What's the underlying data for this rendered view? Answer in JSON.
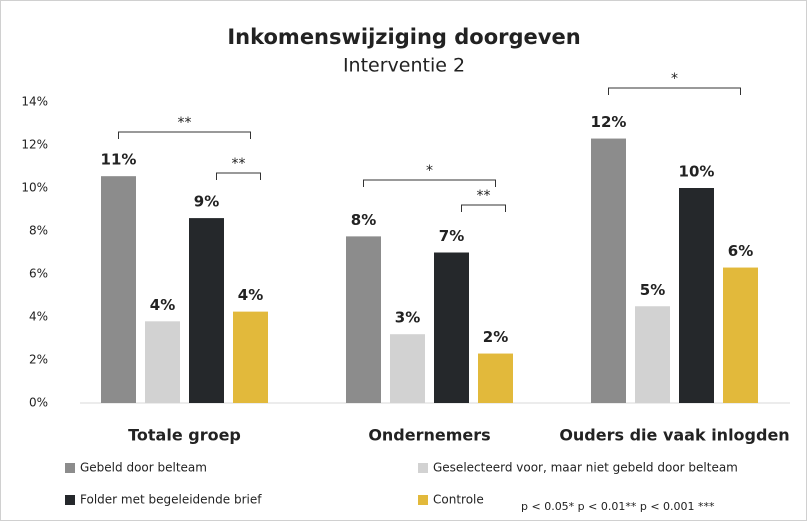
{
  "chart_data": {
    "type": "bar",
    "title": "Inkomenswijziging doorgeven",
    "subtitle": "Interventie 2",
    "categories": [
      "Totale groep",
      "Ondernemers",
      "Ouders die vaak inlogden"
    ],
    "series": [
      {
        "name": "Gebeld door belteam",
        "color": "#8c8c8c",
        "values": [
          10.55,
          7.75,
          12.3
        ],
        "value_labels": [
          "11%",
          "8%",
          "12%"
        ]
      },
      {
        "name": "Geselecteerd voor, maar niet gebeld door belteam",
        "color": "#d2d2d2",
        "values": [
          3.8,
          3.2,
          4.5
        ],
        "value_labels": [
          "4%",
          "3%",
          "5%"
        ]
      },
      {
        "name": "Folder met begeleidende brief",
        "color": "#25282b",
        "values": [
          8.6,
          7.0,
          10.0
        ],
        "value_labels": [
          "9%",
          "7%",
          "10%"
        ]
      },
      {
        "name": "Controle",
        "color": "#e2b93b",
        "values": [
          4.25,
          2.3,
          6.3
        ],
        "value_labels": [
          "4%",
          "2%",
          "6%"
        ]
      }
    ],
    "ylim": [
      0,
      14
    ],
    "yticks": [
      {
        "value": 0,
        "label": "0%"
      },
      {
        "value": 2,
        "label": "2%"
      },
      {
        "value": 4,
        "label": "4%"
      },
      {
        "value": 6,
        "label": "6%"
      },
      {
        "value": 8,
        "label": "8%"
      },
      {
        "value": 10,
        "label": "10%"
      },
      {
        "value": 12,
        "label": "12%"
      },
      {
        "value": 14,
        "label": "14%"
      }
    ],
    "grid": false,
    "annotations": [
      "**",
      "**",
      "*",
      "**",
      "*"
    ],
    "footnote": "p < 0.05* p < 0.01** p < 0.001 ***"
  }
}
